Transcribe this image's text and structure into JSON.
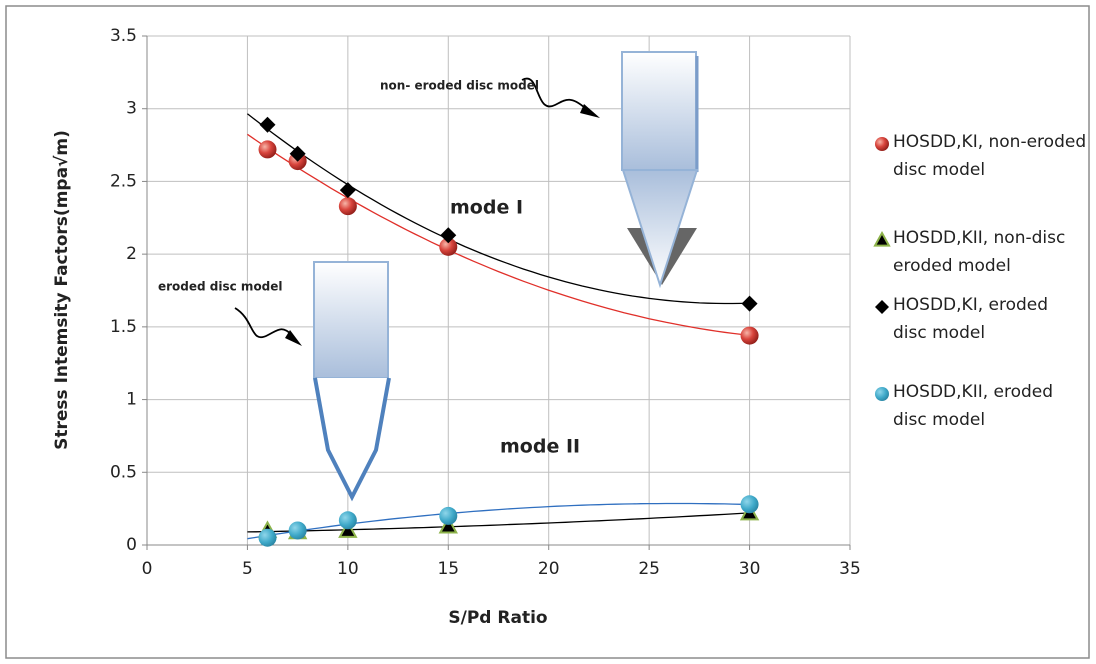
{
  "chart_data": {
    "type": "scatter",
    "x_label": "S/Pd Ratio",
    "y_label": "Stress Intemsity Factors(mpa√m)",
    "xlim": [
      0,
      35
    ],
    "xticks": [
      0,
      5,
      10,
      15,
      20,
      25,
      30,
      35
    ],
    "ylim": [
      0,
      3.5
    ],
    "yticks": [
      0,
      0.5,
      1,
      1.5,
      2,
      2.5,
      3,
      3.5
    ],
    "grid": true,
    "legend": "right",
    "annotations": [
      "non- eroded disc model",
      "eroded disc model",
      "mode I",
      "mode II"
    ],
    "series": [
      {
        "name": "HOSDD,KI, non-eroded disc model",
        "marker": "circle",
        "color": "#d9453d",
        "trendline_color": "#e0302a",
        "x": [
          6,
          7.5,
          10,
          15,
          30
        ],
        "values": [
          2.72,
          2.64,
          2.33,
          2.05,
          1.44
        ]
      },
      {
        "name": "HOSDD,KII, non-disc eroded model",
        "marker": "triangle",
        "color": "#000000",
        "trendline_color": "#000000",
        "x": [
          6,
          7.5,
          10,
          15,
          30
        ],
        "values": [
          0.1,
          0.09,
          0.1,
          0.13,
          0.22
        ]
      },
      {
        "name": "HOSDD,KI, eroded disc model",
        "marker": "diamond",
        "color": "#000000",
        "trendline_color": "#000000",
        "x": [
          6,
          7.5,
          10,
          15,
          30
        ],
        "values": [
          2.89,
          2.69,
          2.44,
          2.13,
          1.66
        ]
      },
      {
        "name": "HOSDD,KII, eroded disc model",
        "marker": "circle",
        "color": "#3fa9c9",
        "trendline_color": "#2f6fc0",
        "x": [
          6,
          7.5,
          10,
          15,
          30
        ],
        "values": [
          0.05,
          0.1,
          0.17,
          0.2,
          0.28
        ]
      }
    ]
  }
}
